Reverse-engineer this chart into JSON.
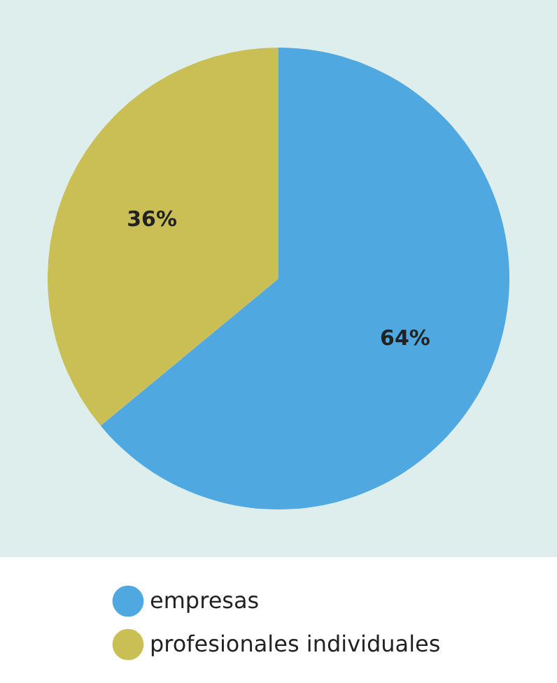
{
  "chart_data": {
    "type": "pie",
    "categories": [
      "empresas",
      "profesionales individuales"
    ],
    "values": [
      64,
      36
    ],
    "colors": [
      "#4fa9e0",
      "#c9bf55"
    ],
    "value_labels": [
      "64%",
      "36%"
    ],
    "legend": "bottom"
  }
}
